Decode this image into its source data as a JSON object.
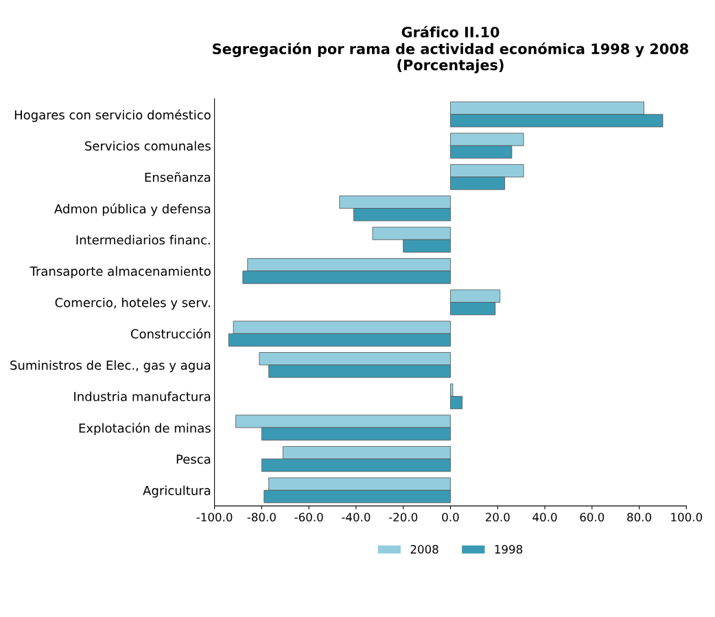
{
  "chart_data": {
    "type": "bar",
    "orientation": "horizontal",
    "title": "Gráfico II.10\nSegregación por rama de actividad económica 1998 y 2008\n(Porcentajes)",
    "categories": [
      "Hogares con servicio doméstico",
      "Servicios comunales",
      "Enseñanza",
      "Admon pública y defensa",
      "Intermediarios financ.",
      "Transaporte almacenamiento",
      "Comercio, hoteles y serv.",
      "Construcción",
      "Suministros de Elec., gas y agua",
      "Industria manufactura",
      "Explotación de minas",
      "Pesca",
      "Agricultura"
    ],
    "series": [
      {
        "name": "2008",
        "color": "#93cddd",
        "values": [
          82,
          31,
          31,
          -47,
          -33,
          -86,
          21,
          -92,
          -81,
          1,
          -91,
          -71,
          -77
        ]
      },
      {
        "name": "1998",
        "color": "#3a9ab4",
        "values": [
          90,
          26,
          23,
          -41,
          -20,
          -88,
          19,
          -94,
          -77,
          5,
          -80,
          -80,
          -79
        ]
      }
    ],
    "xlim": [
      -100,
      100
    ],
    "xticks": [
      {
        "value": -100,
        "label": "-100.0"
      },
      {
        "value": -80,
        "label": "-80.0"
      },
      {
        "value": -60,
        "label": "-60.0"
      },
      {
        "value": -40,
        "label": "-40.0"
      },
      {
        "value": -20,
        "label": "-20.0"
      },
      {
        "value": 0,
        "label": "0.0"
      },
      {
        "value": 20,
        "label": "20.0"
      },
      {
        "value": 40,
        "label": "40.0"
      },
      {
        "value": 60,
        "label": "60.0"
      },
      {
        "value": 80,
        "label": "80.0"
      },
      {
        "value": 100,
        "label": "100.0"
      }
    ],
    "legend": "bottom",
    "grid": false
  }
}
